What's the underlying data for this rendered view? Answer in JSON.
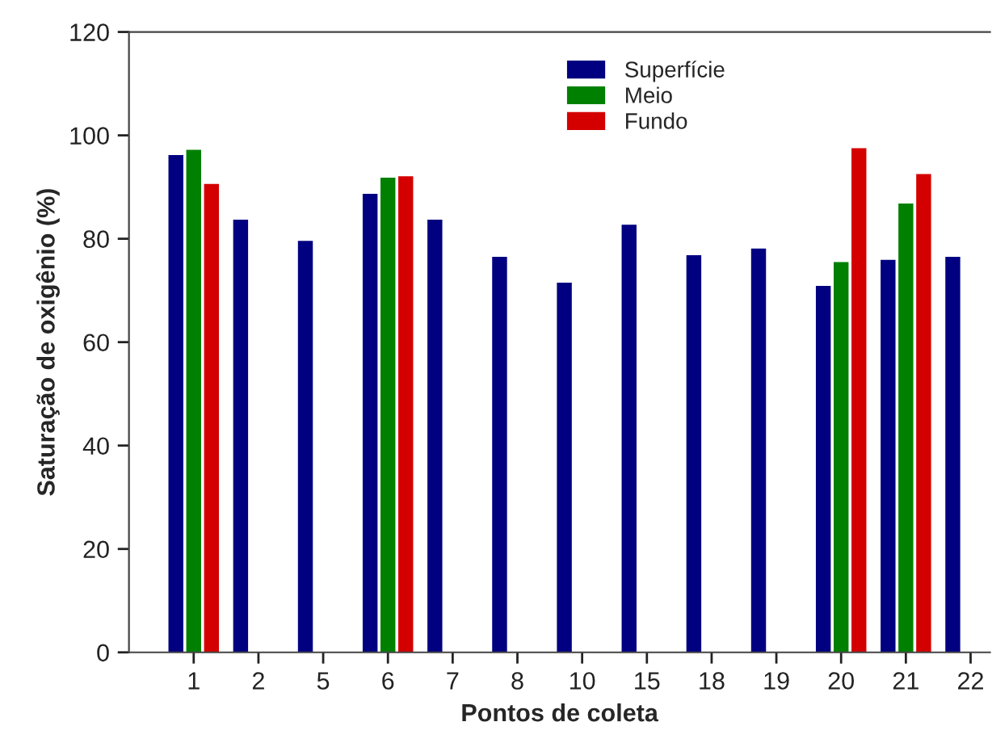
{
  "chart_data": {
    "type": "bar",
    "xlabel": "Pontos de coleta",
    "ylabel": "Saturação de oxigênio (%)",
    "categories": [
      "1",
      "2",
      "5",
      "6",
      "7",
      "8",
      "10",
      "15",
      "18",
      "19",
      "20",
      "21",
      "22"
    ],
    "series": [
      {
        "name": "Superfície",
        "color": "#000080",
        "values": [
          96.2,
          83.7,
          79.6,
          88.7,
          83.7,
          76.5,
          71.5,
          82.7,
          76.8,
          78.1,
          70.9,
          75.9,
          76.5
        ]
      },
      {
        "name": "Meio",
        "color": "#008000",
        "values": [
          97.2,
          null,
          null,
          91.8,
          null,
          null,
          null,
          null,
          null,
          null,
          75.5,
          86.8,
          null
        ]
      },
      {
        "name": "Fundo",
        "color": "#d40000",
        "values": [
          90.6,
          null,
          null,
          92.1,
          null,
          null,
          null,
          null,
          null,
          null,
          97.5,
          92.5,
          null
        ]
      }
    ],
    "ylim": [
      0,
      120
    ],
    "yticks": [
      0,
      20,
      40,
      60,
      80,
      100,
      120
    ],
    "grid": false,
    "legend": "top"
  }
}
